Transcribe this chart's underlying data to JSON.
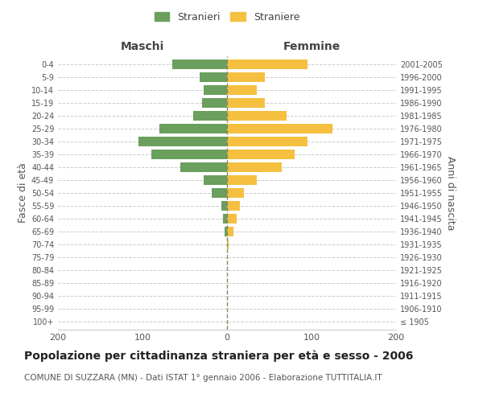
{
  "age_groups": [
    "100+",
    "95-99",
    "90-94",
    "85-89",
    "80-84",
    "75-79",
    "70-74",
    "65-69",
    "60-64",
    "55-59",
    "50-54",
    "45-49",
    "40-44",
    "35-39",
    "30-34",
    "25-29",
    "20-24",
    "15-19",
    "10-14",
    "5-9",
    "0-4"
  ],
  "birth_years": [
    "≤ 1905",
    "1906-1910",
    "1911-1915",
    "1916-1920",
    "1921-1925",
    "1926-1930",
    "1931-1935",
    "1936-1940",
    "1941-1945",
    "1946-1950",
    "1951-1955",
    "1956-1960",
    "1961-1965",
    "1966-1970",
    "1971-1975",
    "1976-1980",
    "1981-1985",
    "1986-1990",
    "1991-1995",
    "1996-2000",
    "2001-2005"
  ],
  "maschi": [
    0,
    0,
    0,
    0,
    0,
    0,
    0,
    3,
    5,
    7,
    18,
    28,
    55,
    90,
    105,
    80,
    40,
    30,
    28,
    32,
    65
  ],
  "femmine": [
    0,
    0,
    0,
    0,
    0,
    0,
    2,
    8,
    11,
    15,
    20,
    35,
    65,
    80,
    95,
    125,
    70,
    45,
    35,
    45,
    95
  ],
  "male_color": "#6a9f5e",
  "female_color": "#f5c040",
  "bar_height": 0.75,
  "xlim": 200,
  "title": "Popolazione per cittadinanza straniera per età e sesso - 2006",
  "subtitle": "COMUNE DI SUZZARA (MN) - Dati ISTAT 1° gennaio 2006 - Elaborazione TUTTITALIA.IT",
  "ylabel_left": "Fasce di età",
  "ylabel_right": "Anni di nascita",
  "legend_maschi": "Stranieri",
  "legend_femmine": "Straniere",
  "header_maschi": "Maschi",
  "header_femmine": "Femmine",
  "grid_color": "#cccccc",
  "background_color": "#ffffff",
  "tick_color": "#999999",
  "title_fontsize": 10,
  "subtitle_fontsize": 7.5,
  "axis_label_color": "#555555"
}
